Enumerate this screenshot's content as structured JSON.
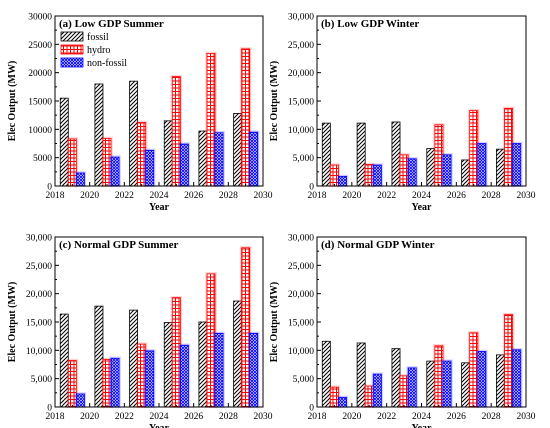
{
  "chart_data": [
    {
      "type": "bar",
      "title": "(a) Low GDP Summer",
      "xlabel": "Year",
      "ylabel": "Elec Output (MW)",
      "xlim": [
        2018,
        2030
      ],
      "ylim": [
        0,
        30000
      ],
      "xticks": [
        "2018",
        "2020",
        "2022",
        "2024",
        "2026",
        "2028",
        "2030"
      ],
      "yticks": [
        "0",
        "5000",
        "10000",
        "15000",
        "20000",
        "25000",
        "30000"
      ],
      "x": [
        2019,
        2021,
        2023,
        2025,
        2027,
        2029
      ],
      "legend": "top-left",
      "series": [
        {
          "name": "fossil",
          "values": [
            15500,
            18000,
            18500,
            11500,
            9700,
            12800
          ]
        },
        {
          "name": "hydro",
          "values": [
            8300,
            8400,
            11200,
            19300,
            23400,
            24200
          ]
        },
        {
          "name": "non-fossil",
          "values": [
            2300,
            5100,
            6300,
            7400,
            9400,
            9500
          ]
        }
      ]
    },
    {
      "type": "bar",
      "title": "(b) Low GDP Winter",
      "xlabel": "Year",
      "ylabel": "Elec Output (MW)",
      "xlim": [
        2018,
        2030
      ],
      "ylim": [
        0,
        30000
      ],
      "xticks": [
        "2018",
        "2020",
        "2022",
        "2024",
        "2026",
        "2028",
        "2030"
      ],
      "yticks": [
        "0",
        "5,000",
        "10,000",
        "15,000",
        "20,000",
        "25,000",
        "30,000"
      ],
      "x": [
        2019,
        2021,
        2023,
        2025,
        2027,
        2029
      ],
      "series": [
        {
          "name": "fossil",
          "values": [
            11100,
            11100,
            11300,
            6600,
            4600,
            6500
          ]
        },
        {
          "name": "hydro",
          "values": [
            3700,
            3800,
            5500,
            10800,
            13300,
            13700
          ]
        },
        {
          "name": "non-fossil",
          "values": [
            1700,
            3700,
            4800,
            5500,
            7500,
            7500
          ]
        }
      ]
    },
    {
      "type": "bar",
      "title": "(c) Normal GDP Summer",
      "xlabel": "Year",
      "ylabel": "Elec Output (MW)",
      "xlim": [
        2018,
        2030
      ],
      "ylim": [
        0,
        30000
      ],
      "xticks": [
        "2018",
        "2020",
        "2022",
        "2024",
        "2026",
        "2028",
        "2030"
      ],
      "yticks": [
        "0",
        "5,000",
        "10,000",
        "15,000",
        "20,000",
        "25,000",
        "30,000"
      ],
      "x": [
        2019,
        2021,
        2023,
        2025,
        2027,
        2029
      ],
      "series": [
        {
          "name": "fossil",
          "values": [
            16400,
            17800,
            17100,
            14900,
            15000,
            18700
          ]
        },
        {
          "name": "hydro",
          "values": [
            8200,
            8400,
            11100,
            19300,
            23500,
            28100
          ]
        },
        {
          "name": "non-fossil",
          "values": [
            2300,
            8600,
            9900,
            10900,
            13000,
            13000
          ]
        }
      ]
    },
    {
      "type": "bar",
      "title": "(d) Normal GDP Winter",
      "xlabel": "Year",
      "ylabel": "Elec Output (MW)",
      "xlim": [
        2018,
        2030
      ],
      "ylim": [
        0,
        30000
      ],
      "xticks": [
        "2018",
        "2020",
        "2022",
        "2024",
        "2026",
        "2028",
        "2030"
      ],
      "yticks": [
        "0",
        "5,000",
        "10,000",
        "15,000",
        "20,000",
        "25,000",
        "30,000"
      ],
      "x": [
        2019,
        2021,
        2023,
        2025,
        2027,
        2029
      ],
      "series": [
        {
          "name": "fossil",
          "values": [
            11600,
            11300,
            10300,
            8100,
            7800,
            9200
          ]
        },
        {
          "name": "hydro",
          "values": [
            3500,
            3700,
            5500,
            10800,
            13100,
            16300
          ]
        },
        {
          "name": "non-fossil",
          "values": [
            1700,
            5800,
            6900,
            8100,
            9800,
            10100
          ]
        }
      ]
    }
  ],
  "colors": {
    "fossil": "#000000",
    "hydro": "#ff0000",
    "non-fossil": "#0000ff",
    "axis": "#000000"
  }
}
